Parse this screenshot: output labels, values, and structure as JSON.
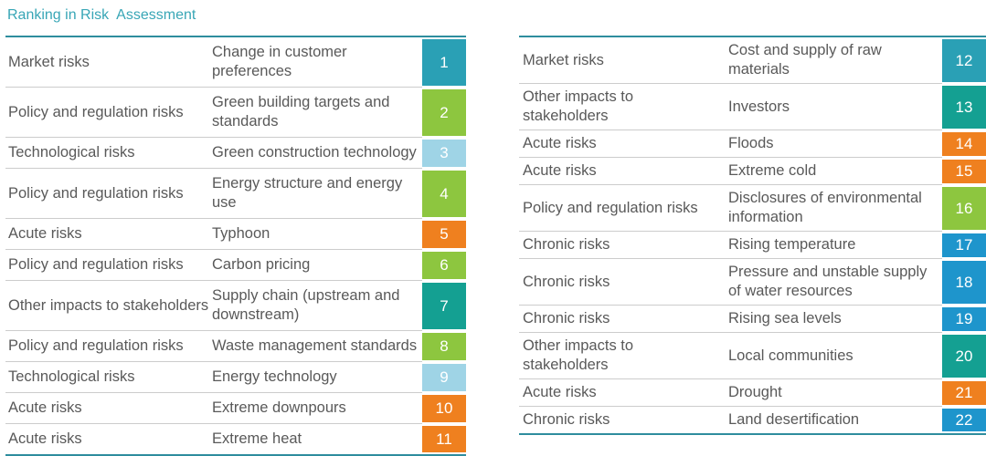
{
  "title": "Ranking in Risk  Assessment",
  "colors": {
    "title_text": "#38A6B6",
    "border": "#2E8D9E",
    "row_text": "#595959",
    "separator": "#CCCCCC",
    "badge_text": "#FFFFFF",
    "categories": {
      "market": "#2AA0B5",
      "policy": "#8DC63F",
      "technological": "#9FD4E6",
      "acute": "#EF801F",
      "stakeholders": "#14A092",
      "chronic": "#1E95CC"
    }
  },
  "tables": {
    "left": {
      "rows": [
        {
          "category": "Market risks",
          "risk": "Change in customer preferences",
          "rank": "1",
          "category_key": "market"
        },
        {
          "category": "Policy and regulation risks",
          "risk": "Green building targets and standards",
          "rank": "2",
          "category_key": "policy"
        },
        {
          "category": "Technological risks",
          "risk": "Green construction technology",
          "rank": "3",
          "category_key": "technological"
        },
        {
          "category": "Policy and regulation risks",
          "risk": "Energy structure and energy use",
          "rank": "4",
          "category_key": "policy"
        },
        {
          "category": "Acute risks",
          "risk": "Typhoon",
          "rank": "5",
          "category_key": "acute"
        },
        {
          "category": "Policy and regulation risks",
          "risk": "Carbon pricing",
          "rank": "6",
          "category_key": "policy"
        },
        {
          "category": "Other impacts to stakeholders",
          "risk": "Supply chain (upstream and downstream)",
          "rank": "7",
          "category_key": "stakeholders"
        },
        {
          "category": "Policy and regulation risks",
          "risk": "Waste management standards",
          "rank": "8",
          "category_key": "policy"
        },
        {
          "category": "Technological risks",
          "risk": "Energy technology",
          "rank": "9",
          "category_key": "technological"
        },
        {
          "category": "Acute risks",
          "risk": "Extreme downpours",
          "rank": "10",
          "category_key": "acute"
        },
        {
          "category": "Acute risks",
          "risk": "Extreme heat",
          "rank": "11",
          "category_key": "acute"
        }
      ]
    },
    "right": {
      "rows": [
        {
          "category": "Market risks",
          "risk": "Cost and supply of raw materials",
          "rank": "12",
          "category_key": "market"
        },
        {
          "category": "Other impacts to stakeholders",
          "risk": "Investors",
          "rank": "13",
          "category_key": "stakeholders"
        },
        {
          "category": "Acute risks",
          "risk": "Floods",
          "rank": "14",
          "category_key": "acute"
        },
        {
          "category": "Acute risks",
          "risk": "Extreme cold",
          "rank": "15",
          "category_key": "acute"
        },
        {
          "category": "Policy and regulation risks",
          "risk": "Disclosures of environmental information",
          "rank": "16",
          "category_key": "policy"
        },
        {
          "category": "Chronic risks",
          "risk": "Rising temperature",
          "rank": "17",
          "category_key": "chronic"
        },
        {
          "category": "Chronic risks",
          "risk": "Pressure and unstable supply of water resources",
          "rank": "18",
          "category_key": "chronic"
        },
        {
          "category": "Chronic risks",
          "risk": "Rising sea levels",
          "rank": "19",
          "category_key": "chronic"
        },
        {
          "category": "Other impacts to stakeholders",
          "risk": "Local communities",
          "rank": "20",
          "category_key": "stakeholders"
        },
        {
          "category": "Acute risks",
          "risk": "Drought",
          "rank": "21",
          "category_key": "acute"
        },
        {
          "category": "Chronic risks",
          "risk": "Land desertification",
          "rank": "22",
          "category_key": "chronic"
        }
      ]
    }
  }
}
